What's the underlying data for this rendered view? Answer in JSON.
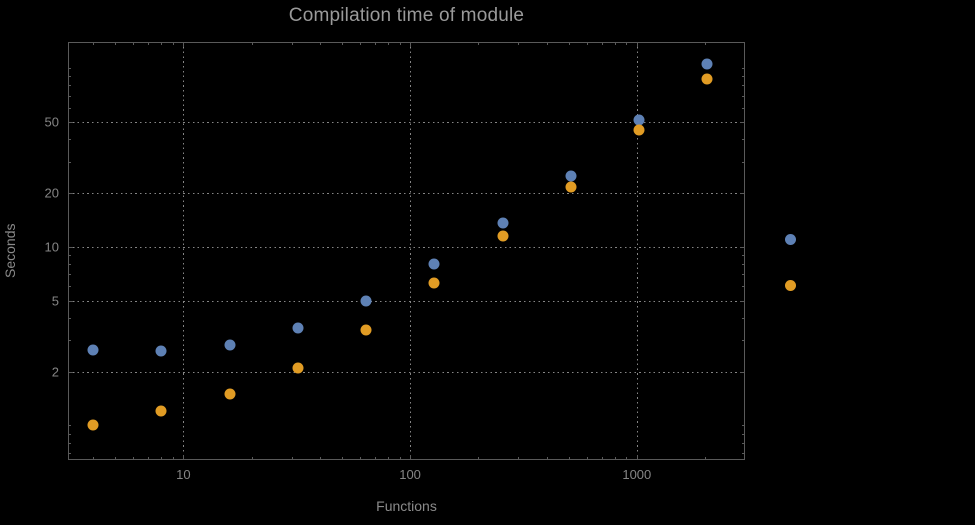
{
  "page": {
    "background_color": "#000000"
  },
  "colors": {
    "frame": "#5a5a5a",
    "grid": "#868686",
    "tick_text": "#858585",
    "title_text": "#9a9a9a",
    "axis_label_text": "#8a8a8a",
    "series1": "#5e81b5",
    "series2": "#e19c24"
  },
  "chart_data": {
    "type": "scatter",
    "title": "Compilation time of module",
    "xlabel": "Functions",
    "ylabel": "Seconds",
    "x_scale": "log",
    "y_scale": "log",
    "x_range": [
      3.1,
      3000
    ],
    "y_range": [
      0.64,
      140
    ],
    "x_ticks": [
      10,
      100,
      1000
    ],
    "y_ticks": [
      2,
      5,
      10,
      20,
      50
    ],
    "grid": true,
    "x": [
      4,
      8,
      16,
      32,
      64,
      128,
      256,
      512,
      1024,
      2048
    ],
    "series": [
      {
        "name": "series-1",
        "color": "#5e81b5",
        "marker": "circle",
        "values": [
          2.65,
          2.6,
          2.8,
          3.5,
          5.0,
          8.0,
          13.5,
          25,
          51,
          105
        ]
      },
      {
        "name": "series-2",
        "color": "#e19c24",
        "marker": "circle",
        "values": [
          1.0,
          1.2,
          1.5,
          2.1,
          3.4,
          6.3,
          11.5,
          21.5,
          45,
          87
        ]
      }
    ],
    "legend": {
      "position": "right-outside",
      "markers": [
        {
          "series": "series-1",
          "color": "#5e81b5"
        },
        {
          "series": "series-2",
          "color": "#e19c24"
        }
      ]
    }
  }
}
